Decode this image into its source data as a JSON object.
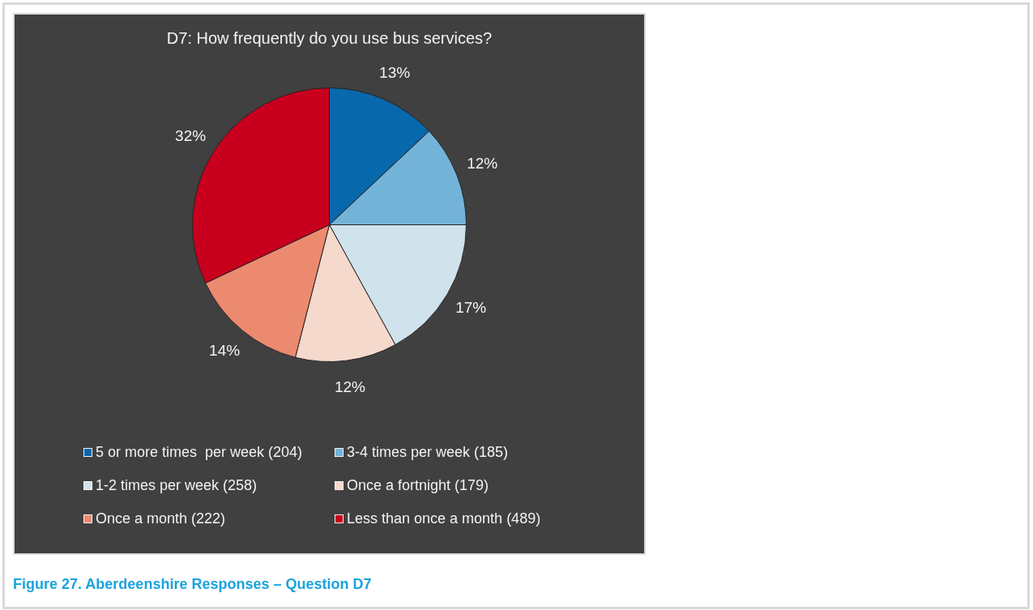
{
  "chart_data": {
    "type": "pie",
    "title": "D7: How frequently do you use bus services?",
    "categories": [
      "5 or more times  per week (204)",
      "3-4 times per week (185)",
      "1-2 times per week (258)",
      "Once a fortnight (179)",
      "Once a month (222)",
      "Less than once a month (489)"
    ],
    "values": [
      13,
      12,
      17,
      12,
      14,
      32
    ],
    "colors": [
      "#0868ac",
      "#74b3d8",
      "#d0e2ec",
      "#f5d9cc",
      "#ec8a70",
      "#c8001e"
    ],
    "value_labels": [
      "13%",
      "12%",
      "17%",
      "12%",
      "14%",
      "32%"
    ],
    "legend": "bottom",
    "annotations": [
      "Figure 27. Aberdeenshire Responses – Question D7"
    ]
  }
}
